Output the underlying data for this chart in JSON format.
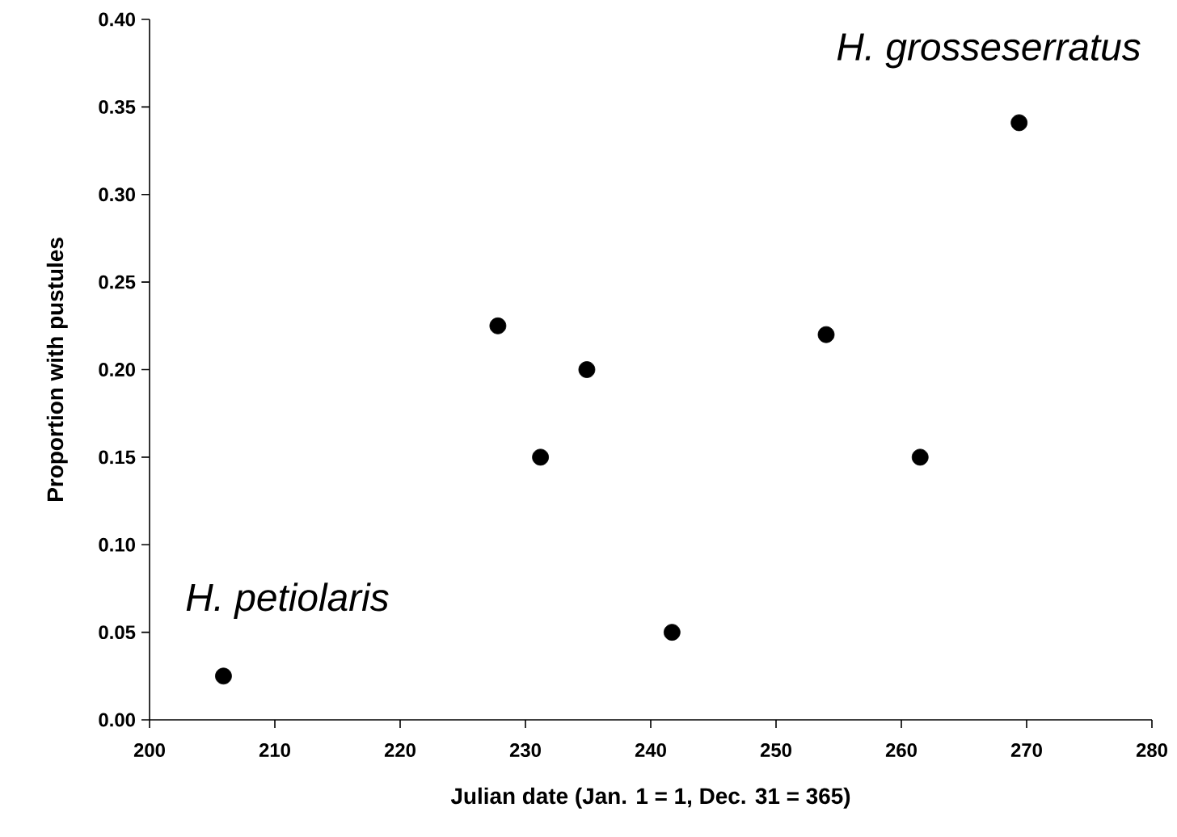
{
  "chart_data": {
    "type": "scatter",
    "xlabel": "Julian date (Jan. 1 = 1, Dec. 31 = 365)",
    "ylabel": "Proportion with pustules",
    "x": [
      205.9,
      227.8,
      231.2,
      234.9,
      241.7,
      254.0,
      261.5,
      269.4
    ],
    "values": [
      0.025,
      0.225,
      0.15,
      0.2,
      0.05,
      0.22,
      0.15,
      0.341
    ],
    "color": "#000000",
    "marker": "circle",
    "xlim": [
      200,
      280
    ],
    "xticks": [
      200,
      210,
      220,
      230,
      240,
      250,
      260,
      270,
      280
    ],
    "ylim": [
      0,
      0.4
    ],
    "yticks": [
      {
        "value": 0,
        "label": "0.00"
      },
      {
        "value": 0.05,
        "label": "0.05"
      },
      {
        "value": 0.1,
        "label": "0.10"
      },
      {
        "value": 0.15,
        "label": "0.15"
      },
      {
        "value": 0.2,
        "label": "0.20"
      },
      {
        "value": 0.25,
        "label": "0.25"
      },
      {
        "value": 0.3,
        "label": "0.30"
      },
      {
        "value": 0.35,
        "label": "0.35"
      },
      {
        "value": 0.4,
        "label": "0.40"
      }
    ],
    "annotations": [
      "H. petiolaris",
      "H. grosseserratus"
    ],
    "grid": false
  }
}
